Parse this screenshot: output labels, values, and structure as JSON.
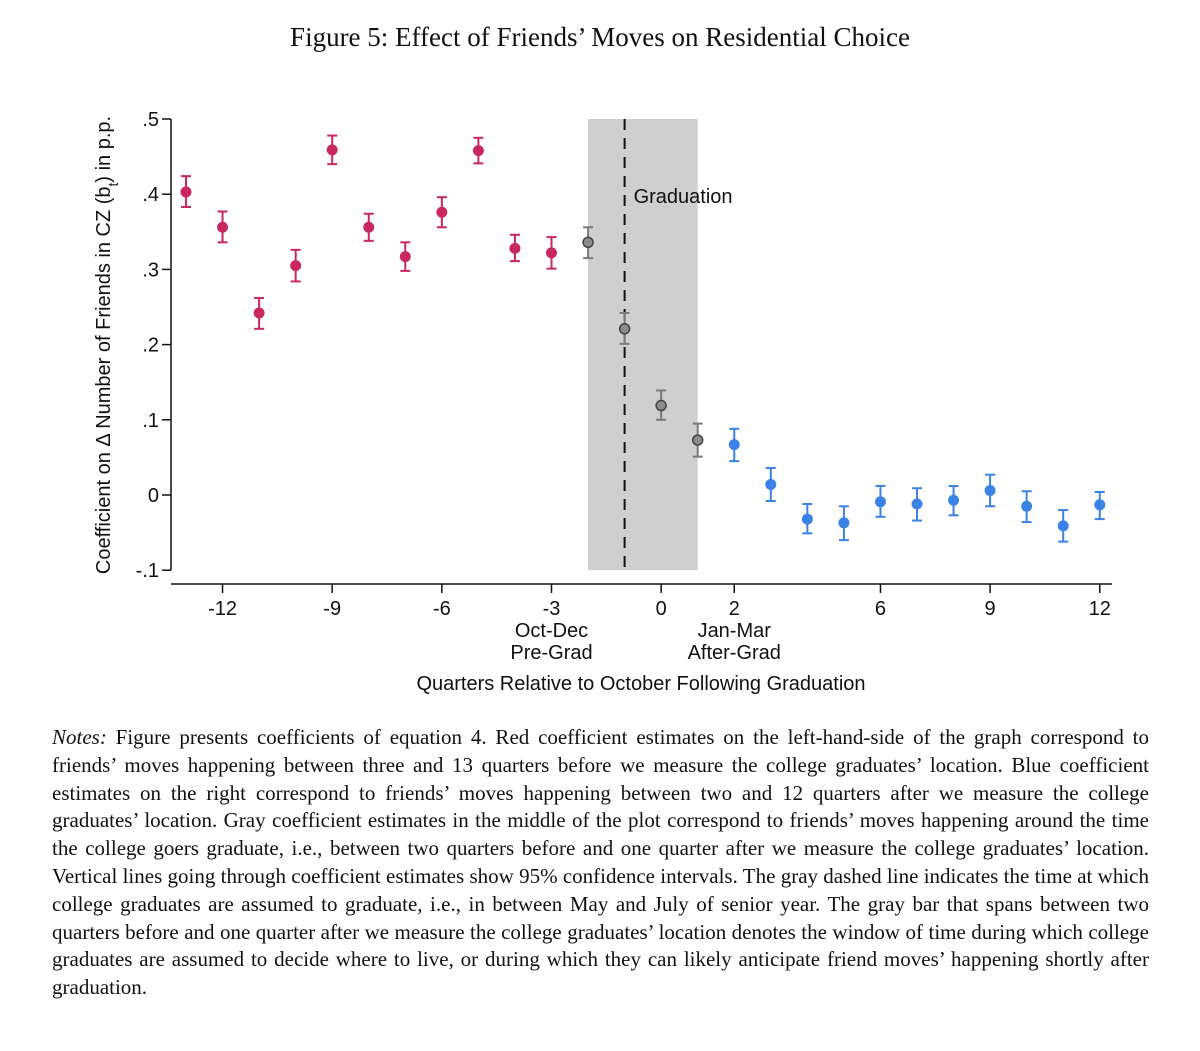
{
  "figure_title": "Figure 5: Effect of Friends’ Moves on Residential Choice",
  "notes": {
    "label": "Notes:",
    "text": "Figure presents coefficients of equation 4. Red coefficient estimates on the left-hand-side of the graph correspond to friends’ moves happening between three and 13 quarters before we measure the college graduates’ location. Blue coefficient estimates on the right correspond to friends’ moves happening between two and 12 quarters after we measure the college graduates’ location. Gray coefficient estimates in the middle of the plot correspond to friends’ moves happening around the time the college goers graduate, i.e., between two quarters before and one quarter after we measure the college graduates’ location. Vertical lines going through coefficient estimates show 95% confidence intervals. The gray dashed line indicates the time at which college graduates are assumed to graduate, i.e., in between May and July of senior year. The gray bar that spans between two quarters before and one quarter after we measure the college graduates’ location denotes the window of time during which college graduates are assumed to decide where to live, or during which they can likely anticipate friend moves’ happening shortly after graduation."
  },
  "chart_data": {
    "type": "scatter",
    "xlabel": "Quarters Relative to October Following Graduation",
    "ylabel_parts": [
      "Coefficient on Δ Number of Friends in CZ (b",
      "t",
      ") in p.p."
    ],
    "xlim": [
      -13,
      12
    ],
    "ylim": [
      -0.1,
      0.5
    ],
    "x_ticks": [
      -12,
      -9,
      -6,
      -3,
      0,
      2,
      6,
      9,
      12
    ],
    "y_ticks": [
      {
        "value": -0.1,
        "label": "-.1"
      },
      {
        "value": 0,
        "label": "0"
      },
      {
        "value": 0.1,
        "label": ".1"
      },
      {
        "value": 0.2,
        "label": ".2"
      },
      {
        "value": 0.3,
        "label": ".3"
      },
      {
        "value": 0.4,
        "label": ".4"
      },
      {
        "value": 0.5,
        "label": ".5"
      }
    ],
    "x_annotations": [
      {
        "x": -3,
        "lines": [
          "Oct-Dec",
          "Pre-Grad"
        ]
      },
      {
        "x": 2,
        "lines": [
          "Jan-Mar",
          "After-Grad"
        ]
      }
    ],
    "shaded_region": {
      "x_from": -2,
      "x_to": 1,
      "color": "#cfcfcf"
    },
    "vline": {
      "x": -1,
      "label": "Graduation",
      "style": "dashed"
    },
    "colors": {
      "pre": "#c8285e",
      "grad": "#7a7a7a",
      "post": "#3b82e6"
    },
    "series": [
      {
        "group": "pre",
        "points": [
          {
            "x": -13,
            "y": 0.403,
            "lo": 0.383,
            "hi": 0.424
          },
          {
            "x": -12,
            "y": 0.356,
            "lo": 0.336,
            "hi": 0.377
          },
          {
            "x": -11,
            "y": 0.242,
            "lo": 0.221,
            "hi": 0.262
          },
          {
            "x": -10,
            "y": 0.305,
            "lo": 0.284,
            "hi": 0.326
          },
          {
            "x": -9,
            "y": 0.459,
            "lo": 0.44,
            "hi": 0.478
          },
          {
            "x": -8,
            "y": 0.356,
            "lo": 0.338,
            "hi": 0.374
          },
          {
            "x": -7,
            "y": 0.317,
            "lo": 0.298,
            "hi": 0.336
          },
          {
            "x": -6,
            "y": 0.376,
            "lo": 0.356,
            "hi": 0.396
          },
          {
            "x": -5,
            "y": 0.458,
            "lo": 0.441,
            "hi": 0.475
          },
          {
            "x": -4,
            "y": 0.328,
            "lo": 0.311,
            "hi": 0.346
          },
          {
            "x": -3,
            "y": 0.322,
            "lo": 0.301,
            "hi": 0.343
          }
        ]
      },
      {
        "group": "grad",
        "points": [
          {
            "x": -2,
            "y": 0.336,
            "lo": 0.315,
            "hi": 0.356
          },
          {
            "x": -1,
            "y": 0.221,
            "lo": 0.201,
            "hi": 0.242
          },
          {
            "x": 0,
            "y": 0.119,
            "lo": 0.1,
            "hi": 0.139
          },
          {
            "x": 1,
            "y": 0.073,
            "lo": 0.051,
            "hi": 0.095
          }
        ]
      },
      {
        "group": "post",
        "points": [
          {
            "x": 2,
            "y": 0.067,
            "lo": 0.045,
            "hi": 0.088
          },
          {
            "x": 3,
            "y": 0.014,
            "lo": -0.008,
            "hi": 0.036
          },
          {
            "x": 4,
            "y": -0.032,
            "lo": -0.051,
            "hi": -0.012
          },
          {
            "x": 5,
            "y": -0.037,
            "lo": -0.06,
            "hi": -0.015
          },
          {
            "x": 6,
            "y": -0.009,
            "lo": -0.029,
            "hi": 0.012
          },
          {
            "x": 7,
            "y": -0.012,
            "lo": -0.034,
            "hi": 0.009
          },
          {
            "x": 8,
            "y": -0.007,
            "lo": -0.027,
            "hi": 0.012
          },
          {
            "x": 9,
            "y": 0.006,
            "lo": -0.015,
            "hi": 0.027
          },
          {
            "x": 10,
            "y": -0.015,
            "lo": -0.036,
            "hi": 0.005
          },
          {
            "x": 11,
            "y": -0.041,
            "lo": -0.062,
            "hi": -0.02
          },
          {
            "x": 12,
            "y": -0.013,
            "lo": -0.032,
            "hi": 0.004
          }
        ]
      }
    ]
  }
}
